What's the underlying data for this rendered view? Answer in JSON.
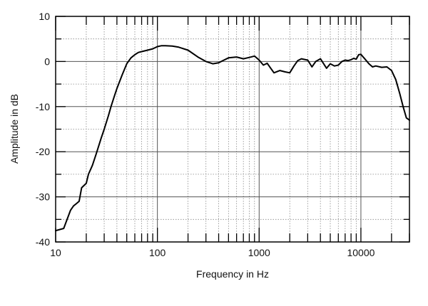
{
  "chart_data": {
    "type": "line",
    "title": "",
    "xlabel": "Frequency in Hz",
    "ylabel": "Amplitude in dB",
    "x_scale": "log",
    "xlim": [
      10,
      30000
    ],
    "ylim": [
      -40,
      10
    ],
    "x_ticks": [
      10,
      100,
      1000,
      10000
    ],
    "x_tick_labels": [
      "10",
      "100",
      "1000",
      "10000"
    ],
    "y_ticks": [
      10,
      0,
      -10,
      -20,
      -30,
      -40
    ],
    "y_tick_labels": [
      "10",
      "0",
      "-10",
      "-20",
      "-30",
      "-40"
    ],
    "grid": true,
    "legend": "none",
    "colors": {
      "line": "#000000",
      "grid_major": "#555555",
      "grid_minor": "#888888",
      "frame": "#000000"
    },
    "series": [
      {
        "values": [
          [
            10,
            -37.5
          ],
          [
            12,
            -37
          ],
          [
            14,
            -33
          ],
          [
            15,
            -32
          ],
          [
            16,
            -31.5
          ],
          [
            17,
            -31
          ],
          [
            18,
            -28
          ],
          [
            20,
            -27
          ],
          [
            21,
            -25
          ],
          [
            23,
            -23
          ],
          [
            25,
            -20.5
          ],
          [
            28,
            -17
          ],
          [
            30,
            -15
          ],
          [
            33,
            -12
          ],
          [
            35,
            -10
          ],
          [
            38,
            -7.5
          ],
          [
            40,
            -6
          ],
          [
            45,
            -3
          ],
          [
            50,
            -0.5
          ],
          [
            55,
            0.8
          ],
          [
            60,
            1.5
          ],
          [
            65,
            2
          ],
          [
            70,
            2.2
          ],
          [
            80,
            2.5
          ],
          [
            90,
            2.8
          ],
          [
            100,
            3.3
          ],
          [
            110,
            3.5
          ],
          [
            120,
            3.5
          ],
          [
            140,
            3.4
          ],
          [
            160,
            3.2
          ],
          [
            200,
            2.5
          ],
          [
            250,
            1
          ],
          [
            300,
            0
          ],
          [
            350,
            -0.5
          ],
          [
            400,
            -0.3
          ],
          [
            450,
            0.3
          ],
          [
            500,
            0.8
          ],
          [
            600,
            1
          ],
          [
            700,
            0.6
          ],
          [
            800,
            0.9
          ],
          [
            900,
            1.2
          ],
          [
            1000,
            0.3
          ],
          [
            1100,
            -0.8
          ],
          [
            1200,
            -0.4
          ],
          [
            1300,
            -1.5
          ],
          [
            1400,
            -2.5
          ],
          [
            1600,
            -2
          ],
          [
            1800,
            -2.3
          ],
          [
            2000,
            -2.5
          ],
          [
            2200,
            -1
          ],
          [
            2400,
            0.2
          ],
          [
            2600,
            0.6
          ],
          [
            3000,
            0.3
          ],
          [
            3300,
            -1.2
          ],
          [
            3600,
            0
          ],
          [
            4000,
            0.6
          ],
          [
            4300,
            -0.5
          ],
          [
            4600,
            -1.5
          ],
          [
            5000,
            -0.5
          ],
          [
            5500,
            -1
          ],
          [
            6000,
            -0.8
          ],
          [
            6500,
            0
          ],
          [
            7000,
            0.3
          ],
          [
            7500,
            0.2
          ],
          [
            8000,
            0.4
          ],
          [
            8500,
            0.7
          ],
          [
            9000,
            0.5
          ],
          [
            9500,
            1.5
          ],
          [
            10000,
            1.6
          ],
          [
            11000,
            0.5
          ],
          [
            12000,
            -0.5
          ],
          [
            13000,
            -1.2
          ],
          [
            14000,
            -1
          ],
          [
            16000,
            -1.3
          ],
          [
            18000,
            -1.2
          ],
          [
            20000,
            -2
          ],
          [
            22000,
            -4
          ],
          [
            24000,
            -7
          ],
          [
            26000,
            -10
          ],
          [
            28000,
            -12.5
          ],
          [
            30000,
            -13
          ]
        ]
      }
    ]
  }
}
